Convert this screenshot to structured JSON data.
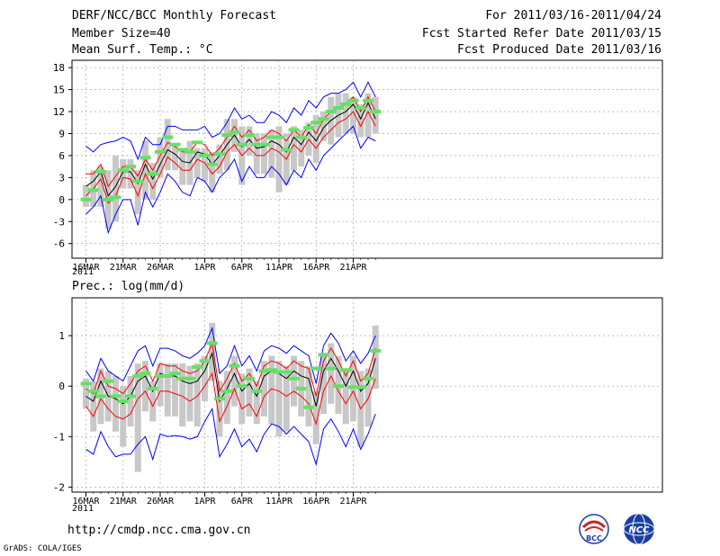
{
  "header": {
    "title": "DERF/NCC/BCC Monthly Forecast",
    "member_size": "Member Size=40",
    "variable": "Mean Surf. Temp.: °C",
    "for_range": "For 2011/03/16-2011/04/24",
    "started": "Fcst Started Refer Date 2011/03/15",
    "produced": "Fcst Produced Date 2011/03/16"
  },
  "footer": {
    "url": "http://cmdp.ncc.cma.gov.cn",
    "grads": "GrADS: COLA/IGES",
    "logo_left": "BCC",
    "logo_right": "NCC"
  },
  "colors": {
    "box": "#c8c8c8",
    "median": "#66e066",
    "mean": "#000000",
    "inner": "#ff0000",
    "outer": "#0000ff"
  },
  "chart_data": [
    {
      "type": "line",
      "title": "Mean Surf. Temp.: °C",
      "year_label": "2011",
      "ylim": [
        -8,
        19
      ],
      "yticks": [
        -6,
        -3,
        0,
        3,
        6,
        9,
        12,
        15,
        18
      ],
      "ytick_labels": [
        "-6",
        "-3",
        "0",
        "3",
        "6",
        "9",
        "12",
        "15",
        "18"
      ],
      "xticks": [
        {
          "day": 0,
          "label": "16MAR"
        },
        {
          "day": 5,
          "label": "21MAR"
        },
        {
          "day": 10,
          "label": "26MAR"
        },
        {
          "day": 16,
          "label": "1APR"
        },
        {
          "day": 21,
          "label": "6APR"
        },
        {
          "day": 26,
          "label": "11APR"
        },
        {
          "day": 31,
          "label": "16APR"
        },
        {
          "day": 36,
          "label": "21APR"
        }
      ],
      "days": [
        0,
        1,
        2,
        3,
        4,
        5,
        6,
        7,
        8,
        9,
        10,
        11,
        12,
        13,
        14,
        15,
        16,
        17,
        18,
        19,
        20,
        21,
        22,
        23,
        24,
        25,
        26,
        27,
        28,
        29,
        30,
        31,
        32,
        33,
        34,
        35,
        36,
        37,
        38,
        39
      ],
      "mean": [
        1.8,
        2.5,
        3.8,
        0.5,
        1.8,
        3.8,
        3.8,
        2.2,
        4.8,
        2.8,
        4.8,
        6.8,
        6.2,
        5.2,
        5.0,
        6.5,
        6.2,
        4.8,
        6.0,
        7.5,
        8.8,
        7.2,
        8.2,
        7.0,
        7.2,
        8.0,
        7.5,
        6.5,
        8.5,
        7.5,
        9.2,
        8.0,
        9.8,
        10.8,
        11.5,
        12.0,
        13.0,
        11.0,
        13.2,
        11.0
      ],
      "outer_max": [
        7.3,
        6.5,
        7.5,
        7.8,
        8.0,
        8.5,
        8.0,
        5.5,
        8.5,
        7.5,
        7.5,
        10.0,
        10.0,
        9.5,
        9.5,
        9.5,
        10.0,
        8.5,
        9.0,
        10.5,
        12.5,
        11.0,
        11.5,
        10.5,
        10.5,
        12.0,
        11.5,
        10.5,
        12.5,
        11.5,
        13.5,
        12.5,
        14.0,
        14.5,
        14.5,
        15.0,
        16.0,
        14.0,
        16.0,
        14.0
      ],
      "outer_min": [
        -2.0,
        -1.0,
        0.5,
        -4.5,
        -2.0,
        0.0,
        0.0,
        -3.5,
        1.0,
        -1.0,
        1.0,
        3.5,
        2.5,
        1.0,
        0.5,
        3.0,
        2.5,
        1.0,
        3.0,
        4.0,
        5.5,
        2.5,
        4.5,
        3.0,
        3.0,
        4.5,
        3.5,
        2.0,
        4.0,
        3.0,
        5.5,
        4.0,
        6.0,
        7.0,
        8.0,
        9.0,
        10.0,
        7.0,
        8.5,
        8.0
      ],
      "inner_max": [
        3.5,
        3.5,
        4.8,
        1.8,
        3.2,
        4.5,
        4.5,
        3.2,
        5.5,
        4.0,
        6.0,
        7.8,
        7.2,
        6.5,
        6.5,
        7.8,
        7.5,
        6.0,
        7.0,
        8.5,
        10.0,
        8.5,
        9.5,
        8.0,
        8.5,
        9.5,
        9.0,
        8.0,
        9.5,
        8.5,
        10.2,
        9.0,
        11.0,
        12.0,
        12.5,
        13.0,
        14.0,
        12.0,
        14.0,
        12.0
      ],
      "inner_min": [
        0.5,
        1.5,
        2.8,
        -0.5,
        0.5,
        3.0,
        2.8,
        0.5,
        3.5,
        1.5,
        3.5,
        5.8,
        5.0,
        4.0,
        4.0,
        5.5,
        5.0,
        3.5,
        4.5,
        6.5,
        7.5,
        6.0,
        7.0,
        6.0,
        6.0,
        7.0,
        6.5,
        5.5,
        7.5,
        6.5,
        8.2,
        7.0,
        8.5,
        9.5,
        10.5,
        11.0,
        12.0,
        10.0,
        12.0,
        10.0
      ],
      "box_top": [
        2.0,
        4.0,
        4.5,
        4.0,
        6.0,
        5.5,
        5.5,
        4.0,
        8.0,
        5.0,
        8.5,
        11.0,
        7.5,
        7.0,
        8.0,
        7.0,
        7.0,
        6.5,
        7.5,
        11.0,
        11.0,
        10.0,
        10.0,
        9.0,
        9.0,
        9.5,
        10.0,
        9.0,
        10.0,
        9.5,
        10.5,
        11.5,
        12.0,
        14.0,
        14.5,
        14.5,
        14.0,
        13.0,
        14.5,
        14.0
      ],
      "box_bot": [
        -1.0,
        -1.0,
        -1.0,
        -4.0,
        -3.0,
        1.5,
        1.5,
        -2.0,
        0.0,
        0.0,
        3.0,
        4.0,
        4.0,
        2.0,
        2.0,
        3.0,
        2.5,
        1.0,
        3.5,
        4.0,
        6.5,
        2.0,
        6.0,
        3.5,
        3.5,
        3.0,
        1.0,
        2.0,
        4.0,
        4.5,
        6.0,
        5.0,
        8.0,
        7.5,
        8.5,
        9.0,
        9.0,
        8.5,
        8.5,
        9.0
      ],
      "median": [
        0.0,
        1.3,
        3.8,
        0.0,
        0.3,
        4.0,
        4.5,
        2.5,
        5.7,
        3.5,
        6.5,
        8.5,
        7.5,
        6.8,
        6.5,
        7.8,
        6.0,
        4.8,
        6.2,
        8.8,
        9.2,
        7.5,
        8.8,
        7.5,
        7.5,
        8.5,
        8.5,
        6.8,
        9.5,
        8.5,
        9.8,
        10.5,
        11.0,
        12.0,
        12.5,
        13.0,
        13.5,
        12.5,
        13.5,
        12.0
      ]
    },
    {
      "type": "line",
      "title": "Prec.: log(mm/d)",
      "year_label": "2011",
      "ylim": [
        -2.1,
        1.75
      ],
      "yticks": [
        -2,
        -1,
        0,
        1
      ],
      "ytick_labels": [
        "-2",
        "-1",
        "0",
        "1"
      ],
      "xticks": [
        {
          "day": 0,
          "label": "16MAR"
        },
        {
          "day": 5,
          "label": "21MAR"
        },
        {
          "day": 10,
          "label": "26MAR"
        },
        {
          "day": 16,
          "label": "1APR"
        },
        {
          "day": 21,
          "label": "6APR"
        },
        {
          "day": 26,
          "label": "11APR"
        },
        {
          "day": 31,
          "label": "16APR"
        },
        {
          "day": 36,
          "label": "21APR"
        }
      ],
      "days": [
        0,
        1,
        2,
        3,
        4,
        5,
        6,
        7,
        8,
        9,
        10,
        11,
        12,
        13,
        14,
        15,
        16,
        17,
        18,
        19,
        20,
        21,
        22,
        23,
        24,
        25,
        26,
        27,
        28,
        29,
        30,
        31,
        32,
        33,
        34,
        35,
        36,
        37,
        38,
        39
      ],
      "mean": [
        -0.2,
        -0.3,
        0.1,
        -0.2,
        -0.25,
        -0.35,
        -0.2,
        0.1,
        0.2,
        -0.1,
        0.25,
        0.2,
        0.2,
        0.1,
        0.05,
        0.1,
        0.3,
        0.65,
        -0.3,
        -0.05,
        0.25,
        -0.1,
        0.05,
        -0.2,
        0.2,
        0.3,
        0.25,
        0.15,
        0.3,
        0.2,
        0.15,
        -0.4,
        0.3,
        0.55,
        0.3,
        0.0,
        0.3,
        -0.1,
        0.05,
        0.55
      ],
      "outer_max": [
        0.3,
        0.1,
        0.55,
        0.3,
        0.2,
        0.1,
        0.4,
        0.7,
        0.8,
        0.4,
        0.75,
        0.75,
        0.7,
        0.6,
        0.55,
        0.65,
        0.8,
        1.15,
        0.25,
        0.4,
        0.8,
        0.4,
        0.6,
        0.3,
        0.7,
        0.8,
        0.75,
        0.65,
        0.8,
        0.7,
        0.6,
        0.05,
        0.8,
        1.05,
        0.85,
        0.5,
        0.7,
        0.45,
        0.65,
        1.0
      ],
      "outer_min": [
        -1.25,
        -1.35,
        -0.9,
        -1.2,
        -1.4,
        -1.35,
        -1.35,
        -1.15,
        -1.0,
        -1.45,
        -0.95,
        -1.0,
        -0.98,
        -1.0,
        -1.05,
        -1.0,
        -0.7,
        -0.45,
        -1.4,
        -1.15,
        -0.85,
        -1.2,
        -1.05,
        -1.3,
        -0.95,
        -0.75,
        -0.8,
        -0.95,
        -0.8,
        -0.95,
        -1.1,
        -1.55,
        -0.85,
        -0.65,
        -0.9,
        -1.2,
        -0.85,
        -1.25,
        -0.95,
        -0.55
      ],
      "inner_max": [
        -0.05,
        -0.15,
        0.3,
        0.0,
        -0.05,
        -0.15,
        0.05,
        0.3,
        0.4,
        0.1,
        0.45,
        0.4,
        0.4,
        0.3,
        0.25,
        0.3,
        0.5,
        0.85,
        -0.1,
        0.15,
        0.45,
        0.1,
        0.25,
        0.0,
        0.4,
        0.5,
        0.45,
        0.35,
        0.5,
        0.4,
        0.35,
        -0.2,
        0.5,
        0.75,
        0.5,
        0.2,
        0.5,
        0.1,
        0.25,
        0.75
      ],
      "inner_min": [
        -0.4,
        -0.6,
        -0.25,
        -0.45,
        -0.6,
        -0.65,
        -0.55,
        -0.25,
        -0.1,
        -0.4,
        -0.1,
        -0.1,
        -0.15,
        -0.2,
        -0.3,
        -0.2,
        0.0,
        0.25,
        -0.7,
        -0.4,
        -0.05,
        -0.45,
        -0.35,
        -0.6,
        -0.2,
        -0.05,
        -0.1,
        -0.2,
        -0.1,
        -0.2,
        -0.35,
        -0.75,
        -0.1,
        0.2,
        -0.1,
        -0.35,
        -0.1,
        -0.45,
        -0.25,
        0.15
      ],
      "box_top": [
        0.15,
        0.1,
        0.35,
        0.3,
        0.2,
        0.0,
        0.2,
        0.45,
        0.5,
        0.1,
        0.45,
        0.45,
        0.45,
        0.45,
        0.4,
        0.45,
        0.6,
        1.25,
        0.1,
        0.3,
        0.6,
        0.25,
        0.35,
        0.1,
        0.5,
        0.6,
        0.5,
        0.4,
        0.6,
        0.5,
        0.4,
        -0.1,
        0.6,
        0.85,
        0.6,
        0.3,
        0.6,
        0.3,
        0.35,
        1.2
      ],
      "box_bot": [
        -0.45,
        -0.9,
        -0.75,
        -0.7,
        -0.9,
        -1.2,
        -0.8,
        -1.7,
        -0.5,
        -0.7,
        -0.4,
        -0.6,
        -0.6,
        -0.8,
        -0.7,
        -0.8,
        -0.3,
        0.1,
        -1.0,
        -0.75,
        -0.4,
        -0.75,
        -0.6,
        -0.75,
        -0.6,
        -0.75,
        -1.0,
        -0.9,
        -0.4,
        -0.6,
        -0.8,
        -1.15,
        -0.55,
        -0.35,
        -0.55,
        -0.75,
        -0.7,
        -1.2,
        -0.8,
        -0.05
      ],
      "median": [
        0.05,
        -0.1,
        -0.2,
        0.1,
        -0.2,
        -0.3,
        -0.2,
        0.2,
        0.25,
        -0.05,
        0.2,
        0.2,
        0.25,
        0.15,
        0.15,
        0.38,
        0.5,
        0.85,
        -0.25,
        -0.1,
        0.4,
        0.0,
        0.15,
        -0.1,
        0.3,
        0.32,
        0.28,
        0.28,
        0.15,
        -0.05,
        -0.42,
        0.35,
        0.62,
        0.35,
        0.0,
        0.32,
        -0.02,
        -0.02,
        0.15,
        0.7
      ]
    }
  ]
}
